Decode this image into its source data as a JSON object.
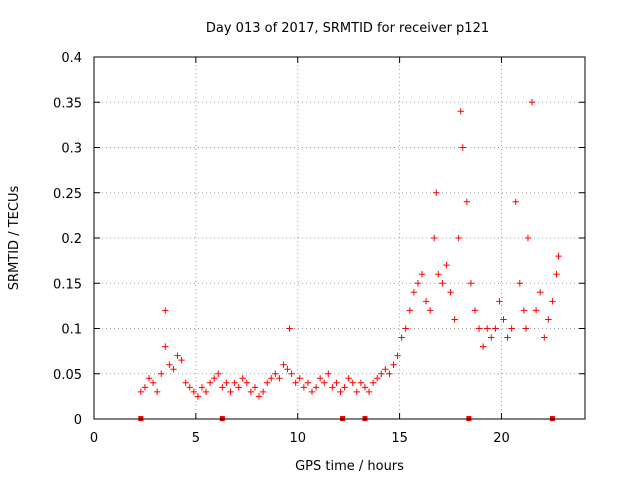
{
  "chart_data": {
    "type": "scatter",
    "title": "Day 013 of 2017, SRMTID for receiver p121",
    "xlabel": "GPS time / hours",
    "ylabel": "SRMTID / TECUs",
    "xlim": [
      0,
      24.1
    ],
    "ylim": [
      0,
      0.4
    ],
    "xticks": [
      0,
      5,
      10,
      15,
      20
    ],
    "xtick_labels": [
      "0",
      "5",
      "10",
      "15",
      "20"
    ],
    "yticks": [
      0,
      0.05,
      0.1,
      0.15,
      0.2,
      0.25,
      0.3,
      0.35,
      0.4
    ],
    "ytick_labels": [
      "0",
      "0.05",
      "0.1",
      "0.15",
      "0.2",
      "0.25",
      "0.3",
      "0.35",
      "0.4"
    ],
    "grid": true,
    "marker": "+",
    "series_color": "#ff0000",
    "baseline_markers_x": [
      2.3,
      6.3,
      12.2,
      13.3,
      18.4,
      22.5
    ],
    "series": [
      {
        "name": "SRMTID",
        "x": [
          2.3,
          2.5,
          2.7,
          2.9,
          3.1,
          3.3,
          3.5,
          3.5,
          3.7,
          3.9,
          4.1,
          4.3,
          4.5,
          4.7,
          4.9,
          5.1,
          5.3,
          5.5,
          5.7,
          5.9,
          6.1,
          6.3,
          6.5,
          6.7,
          6.9,
          7.1,
          7.3,
          7.5,
          7.7,
          7.9,
          8.1,
          8.3,
          8.5,
          8.7,
          8.9,
          9.1,
          9.3,
          9.5,
          9.6,
          9.7,
          9.9,
          10.1,
          10.3,
          10.5,
          10.7,
          10.9,
          11.1,
          11.3,
          11.5,
          11.7,
          11.9,
          12.1,
          12.3,
          12.5,
          12.7,
          12.9,
          13.1,
          13.3,
          13.5,
          13.7,
          13.9,
          14.1,
          14.3,
          14.5,
          14.7,
          14.9,
          15.1,
          15.3,
          15.5,
          15.7,
          15.9,
          16.1,
          16.3,
          16.5,
          16.7,
          16.8,
          16.9,
          17.1,
          17.3,
          17.5,
          17.7,
          17.9,
          18.0,
          18.1,
          18.3,
          18.5,
          18.7,
          18.9,
          19.1,
          19.3,
          19.5,
          19.7,
          19.9,
          20.1,
          20.3,
          20.5,
          20.7,
          20.9,
          21.1,
          21.2,
          21.3,
          21.5,
          21.7,
          21.9,
          22.1,
          22.3,
          22.5,
          22.7,
          22.8
        ],
        "y": [
          0.03,
          0.035,
          0.045,
          0.04,
          0.03,
          0.05,
          0.12,
          0.08,
          0.06,
          0.055,
          0.07,
          0.065,
          0.04,
          0.035,
          0.03,
          0.025,
          0.035,
          0.03,
          0.04,
          0.045,
          0.05,
          0.035,
          0.04,
          0.03,
          0.04,
          0.035,
          0.045,
          0.04,
          0.03,
          0.035,
          0.025,
          0.03,
          0.04,
          0.045,
          0.05,
          0.045,
          0.06,
          0.055,
          0.1,
          0.05,
          0.04,
          0.045,
          0.035,
          0.04,
          0.03,
          0.035,
          0.045,
          0.04,
          0.05,
          0.035,
          0.04,
          0.03,
          0.035,
          0.045,
          0.04,
          0.03,
          0.04,
          0.035,
          0.03,
          0.04,
          0.045,
          0.05,
          0.055,
          0.05,
          0.06,
          0.07,
          0.09,
          0.1,
          0.12,
          0.14,
          0.15,
          0.16,
          0.13,
          0.12,
          0.2,
          0.25,
          0.16,
          0.15,
          0.17,
          0.14,
          0.11,
          0.2,
          0.34,
          0.3,
          0.24,
          0.15,
          0.12,
          0.1,
          0.08,
          0.1,
          0.09,
          0.1,
          0.13,
          0.11,
          0.09,
          0.1,
          0.24,
          0.15,
          0.12,
          0.1,
          0.2,
          0.35,
          0.12,
          0.14,
          0.09,
          0.11,
          0.13,
          0.16,
          0.18
        ]
      }
    ]
  }
}
